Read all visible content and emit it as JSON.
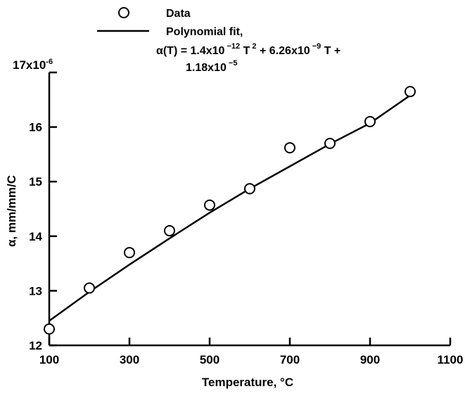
{
  "chart_data": {
    "type": "scatter",
    "title": "",
    "xlabel": "Temperature, °C",
    "ylabel": "α, mm/mm/C",
    "y_multiplier_label": "17x10",
    "y_multiplier_exp": "-6",
    "xlim": [
      100,
      1100
    ],
    "ylim": [
      12,
      17
    ],
    "x_ticks": [
      100,
      300,
      500,
      700,
      900,
      1100
    ],
    "x_tick_labels": [
      "100",
      "300",
      "500",
      "700",
      "900",
      "1100"
    ],
    "y_ticks": [
      12,
      13,
      14,
      15,
      16,
      17
    ],
    "y_tick_labels": [
      "12",
      "13",
      "14",
      "15",
      "16"
    ],
    "grid": false,
    "legend_position": "top-left",
    "series": [
      {
        "name": "Data",
        "kind": "points",
        "marker": "open-circle",
        "x": [
          100,
          200,
          300,
          400,
          500,
          600,
          700,
          800,
          900,
          1000
        ],
        "y": [
          12.3,
          13.05,
          13.7,
          14.1,
          14.57,
          14.87,
          15.62,
          15.7,
          16.1,
          16.65
        ]
      },
      {
        "name": "Polynomial fit,",
        "kind": "line",
        "x": [
          100,
          200,
          300,
          400,
          500,
          600,
          700,
          800,
          900,
          1000
        ],
        "y": [
          12.45,
          12.98,
          13.48,
          13.96,
          14.43,
          14.87,
          15.28,
          15.69,
          16.07,
          16.58
        ]
      }
    ],
    "legend": {
      "data_label": "Data",
      "fit_label": "Polynomial fit,",
      "equation": {
        "line1_a": "α(T) = 1.4x10",
        "line1_a_exp": " −12",
        "line1_b": " T",
        "line1_b_exp": " 2",
        "line1_c": " + 6.26x10",
        "line1_c_exp": " −9",
        "line1_d": " T +",
        "line2_a": "1.18x10",
        "line2_a_exp": " −5"
      }
    }
  }
}
